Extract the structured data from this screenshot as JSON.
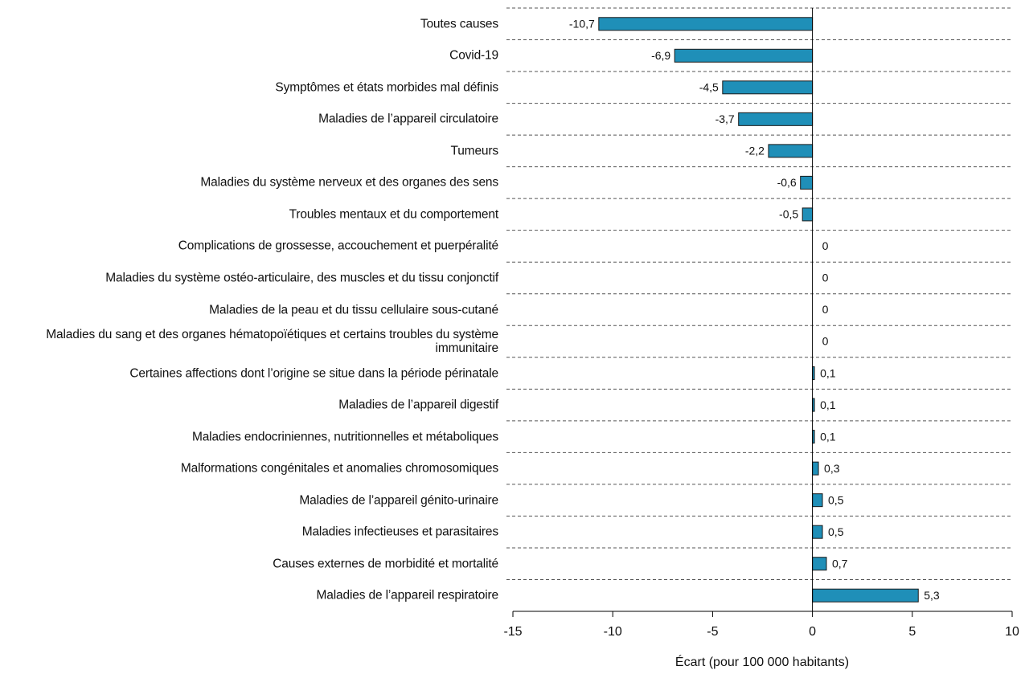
{
  "chart_data": {
    "type": "hbar",
    "x_label": "Écart (pour 100 000 habitants)",
    "categories": [
      "Toutes causes",
      "Covid-19",
      "Symptômes et états morbides mal définis",
      "Maladies de l’appareil circulatoire",
      "Tumeurs",
      "Maladies du système nerveux et des organes des sens",
      "Troubles mentaux et du comportement",
      "Complications de grossesse, accouchement et puerpéralité",
      "Maladies du système ostéo-articulaire, des muscles et du tissu conjonctif",
      "Maladies de la peau et du tissu cellulaire sous-cutané",
      "Maladies du sang et des organes hématopoïétiques et certains troubles du système immunitaire",
      "Certaines affections dont l’origine se situe dans la période périnatale",
      "Maladies de l’appareil digestif",
      "Maladies endocriniennes, nutritionnelles et métaboliques",
      "Malformations congénitales et anomalies chromosomiques",
      "Maladies de l’appareil génito-urinaire",
      "Maladies infectieuses et parasitaires",
      "Causes externes de morbidité et mortalité",
      "Maladies de l’appareil respiratoire"
    ],
    "values": [
      -10.7,
      -6.9,
      -4.5,
      -3.7,
      -2.2,
      -0.6,
      -0.5,
      0,
      0,
      0,
      0,
      0.1,
      0.1,
      0.1,
      0.3,
      0.5,
      0.5,
      0.7,
      5.3
    ],
    "value_labels": [
      "-10,7",
      "-6,9",
      "-4,5",
      "-3,7",
      "-2,2",
      "-0,6",
      "-0,5",
      "0",
      "0",
      "0",
      "0",
      "0,1",
      "0,1",
      "0,1",
      "0,3",
      "0,5",
      "0,5",
      "0,7",
      "5,3"
    ],
    "color": "#1f8fb8",
    "xlim": [
      -15,
      10
    ],
    "xticks": [
      -15,
      -10,
      -5,
      0,
      5,
      10
    ],
    "grid": true
  }
}
